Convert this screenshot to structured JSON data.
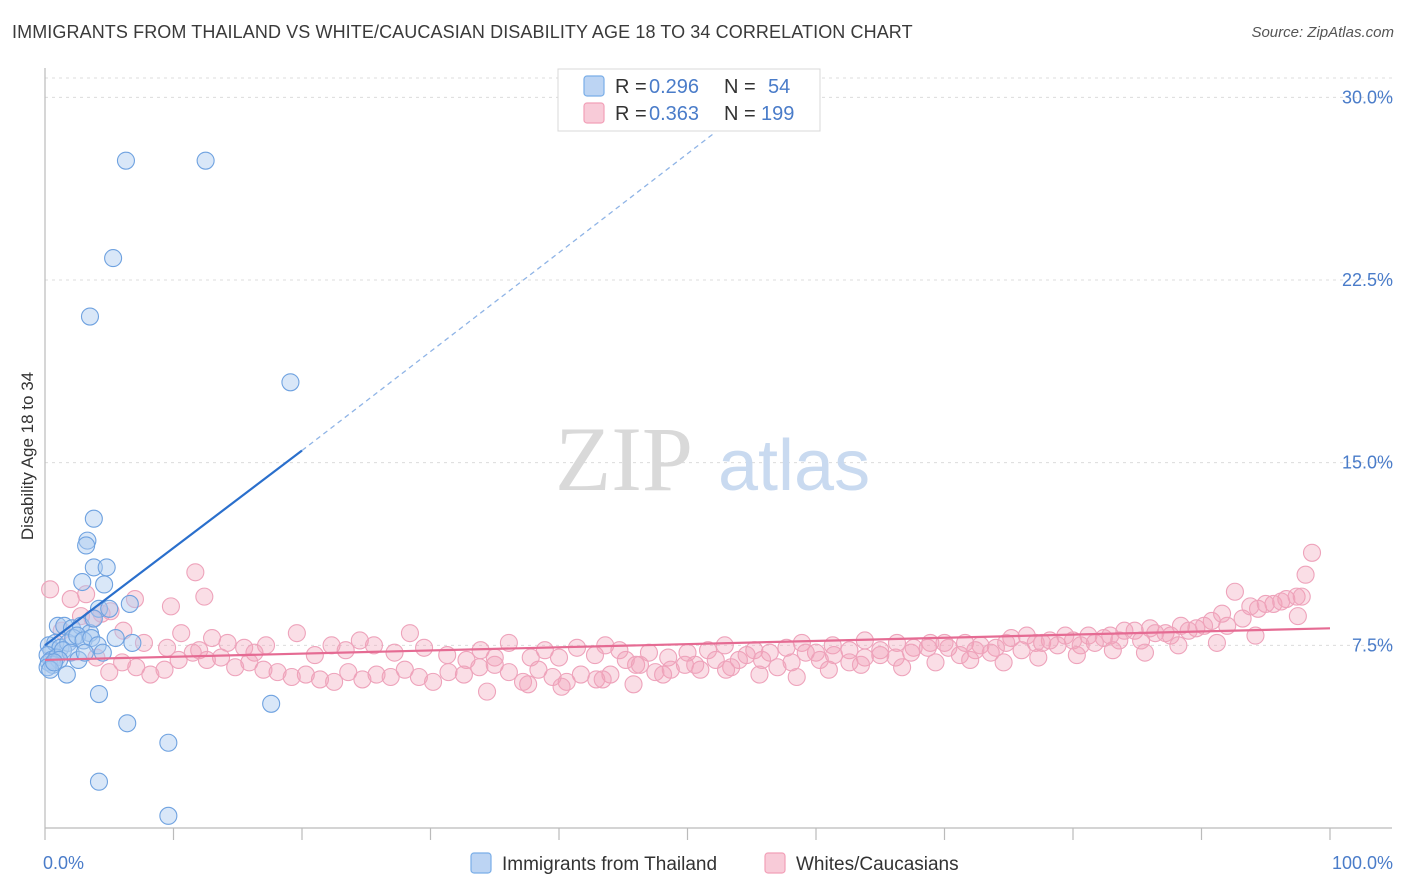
{
  "title": "IMMIGRANTS FROM THAILAND VS WHITE/CAUCASIAN DISABILITY AGE 18 TO 34 CORRELATION CHART",
  "source": "Source: ZipAtlas.com",
  "watermark": {
    "zip": "ZIP",
    "atlas": "atlas"
  },
  "colors": {
    "blue": "#7aaee8",
    "blue_line": "#2a6fcc",
    "pink": "#f2a0b8",
    "pink_line": "#e56b93",
    "tick": "#4a7cc9"
  },
  "legend": {
    "row1": {
      "r_label": "R = ",
      "r_value": "0.296",
      "n_label": "N = ",
      "n_value": "54"
    },
    "row2": {
      "r_label": "R = ",
      "r_value": "0.363",
      "n_label": "N = ",
      "n_value": "199"
    }
  },
  "chart_data": {
    "type": "scatter",
    "title": "IMMIGRANTS FROM THAILAND VS WHITE/CAUCASIAN DISABILITY AGE 18 TO 34 CORRELATION CHART",
    "xlabel": "",
    "ylabel": "Disability Age 18 to 34",
    "xlim": [
      0,
      100
    ],
    "ylim": [
      0,
      31
    ],
    "x_tick_labels": [
      "0.0%",
      "100.0%"
    ],
    "y_ticks": [
      7.5,
      15.0,
      22.5,
      30.0
    ],
    "y_tick_labels": [
      "7.5%",
      "15.0%",
      "22.5%",
      "30.0%"
    ],
    "grid": true,
    "legend_position": "top-center",
    "series": [
      {
        "name": "Immigrants from Thailand",
        "color": "#7aaee8",
        "trend": {
          "x0": 0,
          "y0": 7.5,
          "x1": 20,
          "y1": 15.5,
          "dashed_to_x": 52,
          "dashed_to_y": 28.5
        },
        "points": [
          [
            6.3,
            27.4
          ],
          [
            12.5,
            27.4
          ],
          [
            5.3,
            23.4
          ],
          [
            3.5,
            21.0
          ],
          [
            19.1,
            18.3
          ],
          [
            3.8,
            12.7
          ],
          [
            3.3,
            11.8
          ],
          [
            3.2,
            11.6
          ],
          [
            3.8,
            10.7
          ],
          [
            4.8,
            10.7
          ],
          [
            2.9,
            10.1
          ],
          [
            4.6,
            10.0
          ],
          [
            1.0,
            8.3
          ],
          [
            1.5,
            8.3
          ],
          [
            2.1,
            8.2
          ],
          [
            2.8,
            8.3
          ],
          [
            3.5,
            8.0
          ],
          [
            4.2,
            9.0
          ],
          [
            5.0,
            9.0
          ],
          [
            6.6,
            9.2
          ],
          [
            0.3,
            7.5
          ],
          [
            0.5,
            7.3
          ],
          [
            0.8,
            7.6
          ],
          [
            1.2,
            7.4
          ],
          [
            1.8,
            7.6
          ],
          [
            2.2,
            7.8
          ],
          [
            2.5,
            7.9
          ],
          [
            3.0,
            7.7
          ],
          [
            3.6,
            7.8
          ],
          [
            4.1,
            7.5
          ],
          [
            0.2,
            7.1
          ],
          [
            0.5,
            6.9
          ],
          [
            0.9,
            7.0
          ],
          [
            1.4,
            7.3
          ],
          [
            2.0,
            7.2
          ],
          [
            0.3,
            6.8
          ],
          [
            0.6,
            6.7
          ],
          [
            1.1,
            6.9
          ],
          [
            1.7,
            6.3
          ],
          [
            2.6,
            6.9
          ],
          [
            4.5,
            7.2
          ],
          [
            5.5,
            7.8
          ],
          [
            6.8,
            7.6
          ],
          [
            0.2,
            6.6
          ],
          [
            0.4,
            6.5
          ],
          [
            0.7,
            6.8
          ],
          [
            3.1,
            7.2
          ],
          [
            4.2,
            5.5
          ],
          [
            17.6,
            5.1
          ],
          [
            6.4,
            4.3
          ],
          [
            9.6,
            3.5
          ],
          [
            4.2,
            1.9
          ],
          [
            9.6,
            0.5
          ],
          [
            3.8,
            8.6
          ]
        ]
      },
      {
        "name": "Whites/Caucasians",
        "color": "#f2a0b8",
        "trend": {
          "x0": 0,
          "y0": 6.9,
          "x1": 100,
          "y1": 8.2
        },
        "points": [
          [
            0.4,
            9.8
          ],
          [
            2.0,
            9.4
          ],
          [
            3.2,
            9.6
          ],
          [
            4.4,
            8.8
          ],
          [
            7.0,
            9.4
          ],
          [
            9.8,
            9.1
          ],
          [
            10.6,
            8.0
          ],
          [
            11.7,
            10.5
          ],
          [
            12.4,
            9.5
          ],
          [
            1.3,
            8.1
          ],
          [
            2.8,
            8.7
          ],
          [
            3.7,
            8.6
          ],
          [
            5.1,
            8.9
          ],
          [
            6.1,
            8.1
          ],
          [
            7.7,
            7.6
          ],
          [
            9.5,
            7.4
          ],
          [
            12.0,
            7.3
          ],
          [
            13.0,
            7.8
          ],
          [
            14.2,
            7.6
          ],
          [
            15.5,
            7.4
          ],
          [
            16.3,
            7.2
          ],
          [
            17.2,
            7.5
          ],
          [
            19.6,
            8.0
          ],
          [
            21.0,
            7.1
          ],
          [
            22.3,
            7.5
          ],
          [
            23.4,
            7.3
          ],
          [
            24.5,
            7.7
          ],
          [
            25.6,
            7.5
          ],
          [
            27.2,
            7.2
          ],
          [
            28.4,
            8.0
          ],
          [
            29.5,
            7.4
          ],
          [
            31.3,
            7.1
          ],
          [
            32.8,
            6.9
          ],
          [
            33.9,
            7.3
          ],
          [
            35.0,
            7.0
          ],
          [
            36.1,
            7.6
          ],
          [
            37.8,
            7.0
          ],
          [
            38.9,
            7.3
          ],
          [
            40.0,
            7.0
          ],
          [
            41.4,
            7.4
          ],
          [
            42.8,
            7.1
          ],
          [
            43.6,
            7.5
          ],
          [
            44.7,
            7.3
          ],
          [
            46.0,
            6.7
          ],
          [
            47.0,
            7.2
          ],
          [
            48.5,
            7.0
          ],
          [
            50.0,
            7.2
          ],
          [
            51.6,
            7.3
          ],
          [
            52.9,
            7.5
          ],
          [
            54.0,
            6.9
          ],
          [
            55.2,
            7.3
          ],
          [
            56.4,
            7.2
          ],
          [
            57.7,
            7.4
          ],
          [
            58.9,
            7.6
          ],
          [
            60.0,
            7.2
          ],
          [
            61.3,
            7.5
          ],
          [
            62.6,
            7.3
          ],
          [
            63.8,
            7.7
          ],
          [
            65.0,
            7.3
          ],
          [
            66.3,
            7.6
          ],
          [
            67.6,
            7.4
          ],
          [
            68.9,
            7.6
          ],
          [
            70.3,
            7.4
          ],
          [
            71.6,
            7.6
          ],
          [
            72.8,
            7.5
          ],
          [
            74.0,
            7.4
          ],
          [
            75.2,
            7.8
          ],
          [
            76.4,
            7.9
          ],
          [
            77.6,
            7.6
          ],
          [
            78.8,
            7.5
          ],
          [
            80.0,
            7.7
          ],
          [
            81.2,
            7.9
          ],
          [
            82.4,
            7.8
          ],
          [
            83.6,
            7.7
          ],
          [
            84.8,
            8.1
          ],
          [
            86.0,
            8.2
          ],
          [
            87.2,
            8.0
          ],
          [
            88.4,
            8.3
          ],
          [
            89.6,
            8.2
          ],
          [
            90.8,
            8.5
          ],
          [
            92.0,
            8.3
          ],
          [
            93.2,
            8.6
          ],
          [
            94.4,
            9.0
          ],
          [
            95.6,
            9.2
          ],
          [
            96.6,
            9.4
          ],
          [
            97.4,
            9.5
          ],
          [
            98.1,
            10.4
          ],
          [
            98.6,
            11.3
          ],
          [
            97.8,
            9.5
          ],
          [
            96.2,
            9.3
          ],
          [
            95.0,
            9.2
          ],
          [
            93.8,
            9.1
          ],
          [
            92.6,
            9.7
          ],
          [
            91.6,
            8.8
          ],
          [
            90.2,
            8.3
          ],
          [
            89.0,
            8.1
          ],
          [
            87.6,
            7.9
          ],
          [
            86.4,
            8.0
          ],
          [
            85.3,
            7.7
          ],
          [
            84.0,
            8.1
          ],
          [
            82.9,
            7.9
          ],
          [
            81.7,
            7.6
          ],
          [
            80.6,
            7.5
          ],
          [
            79.4,
            7.9
          ],
          [
            78.2,
            7.7
          ],
          [
            77.1,
            7.6
          ],
          [
            76.0,
            7.3
          ],
          [
            74.8,
            7.6
          ],
          [
            73.6,
            7.2
          ],
          [
            72.4,
            7.3
          ],
          [
            71.2,
            7.1
          ],
          [
            70.0,
            7.6
          ],
          [
            68.7,
            7.4
          ],
          [
            67.4,
            7.2
          ],
          [
            66.2,
            7.0
          ],
          [
            65.0,
            7.1
          ],
          [
            63.8,
            7.0
          ],
          [
            62.6,
            6.8
          ],
          [
            61.4,
            7.1
          ],
          [
            60.3,
            6.9
          ],
          [
            59.2,
            7.2
          ],
          [
            58.1,
            6.8
          ],
          [
            57.0,
            6.6
          ],
          [
            55.8,
            6.9
          ],
          [
            54.6,
            7.1
          ],
          [
            53.4,
            6.6
          ],
          [
            52.2,
            6.9
          ],
          [
            51.0,
            6.5
          ],
          [
            49.8,
            6.7
          ],
          [
            48.7,
            6.5
          ],
          [
            47.5,
            6.4
          ],
          [
            46.3,
            6.7
          ],
          [
            45.2,
            6.9
          ],
          [
            44.0,
            6.3
          ],
          [
            42.9,
            6.1
          ],
          [
            41.7,
            6.3
          ],
          [
            40.6,
            6.0
          ],
          [
            39.5,
            6.2
          ],
          [
            38.4,
            6.5
          ],
          [
            37.2,
            6.0
          ],
          [
            36.1,
            6.4
          ],
          [
            35.0,
            6.7
          ],
          [
            33.8,
            6.6
          ],
          [
            32.6,
            6.3
          ],
          [
            31.4,
            6.4
          ],
          [
            30.2,
            6.0
          ],
          [
            29.1,
            6.2
          ],
          [
            28.0,
            6.5
          ],
          [
            26.9,
            6.2
          ],
          [
            25.8,
            6.3
          ],
          [
            24.7,
            6.1
          ],
          [
            23.6,
            6.4
          ],
          [
            22.5,
            6.0
          ],
          [
            21.4,
            6.1
          ],
          [
            20.3,
            6.3
          ],
          [
            19.2,
            6.2
          ],
          [
            18.1,
            6.4
          ],
          [
            17.0,
            6.5
          ],
          [
            15.9,
            6.8
          ],
          [
            14.8,
            6.6
          ],
          [
            13.7,
            7.0
          ],
          [
            12.6,
            6.9
          ],
          [
            11.5,
            7.2
          ],
          [
            10.4,
            6.9
          ],
          [
            9.3,
            6.5
          ],
          [
            8.2,
            6.3
          ],
          [
            7.1,
            6.6
          ],
          [
            6.0,
            6.8
          ],
          [
            5.0,
            6.4
          ],
          [
            4.0,
            7.0
          ],
          [
            34.4,
            5.6
          ],
          [
            37.6,
            5.9
          ],
          [
            40.2,
            5.8
          ],
          [
            43.4,
            6.1
          ],
          [
            45.8,
            5.9
          ],
          [
            48.1,
            6.3
          ],
          [
            50.6,
            6.7
          ],
          [
            53.0,
            6.5
          ],
          [
            55.6,
            6.3
          ],
          [
            58.5,
            6.2
          ],
          [
            61.0,
            6.5
          ],
          [
            63.5,
            6.7
          ],
          [
            66.7,
            6.6
          ],
          [
            69.3,
            6.8
          ],
          [
            72.0,
            6.9
          ],
          [
            74.6,
            6.8
          ],
          [
            77.3,
            7.0
          ],
          [
            80.3,
            7.1
          ],
          [
            83.1,
            7.3
          ],
          [
            85.6,
            7.2
          ],
          [
            88.2,
            7.5
          ],
          [
            91.2,
            7.6
          ],
          [
            94.2,
            7.9
          ],
          [
            97.5,
            8.7
          ]
        ]
      }
    ]
  },
  "bottom_legend": {
    "item1": "Immigrants from Thailand",
    "item2": "Whites/Caucasians"
  }
}
